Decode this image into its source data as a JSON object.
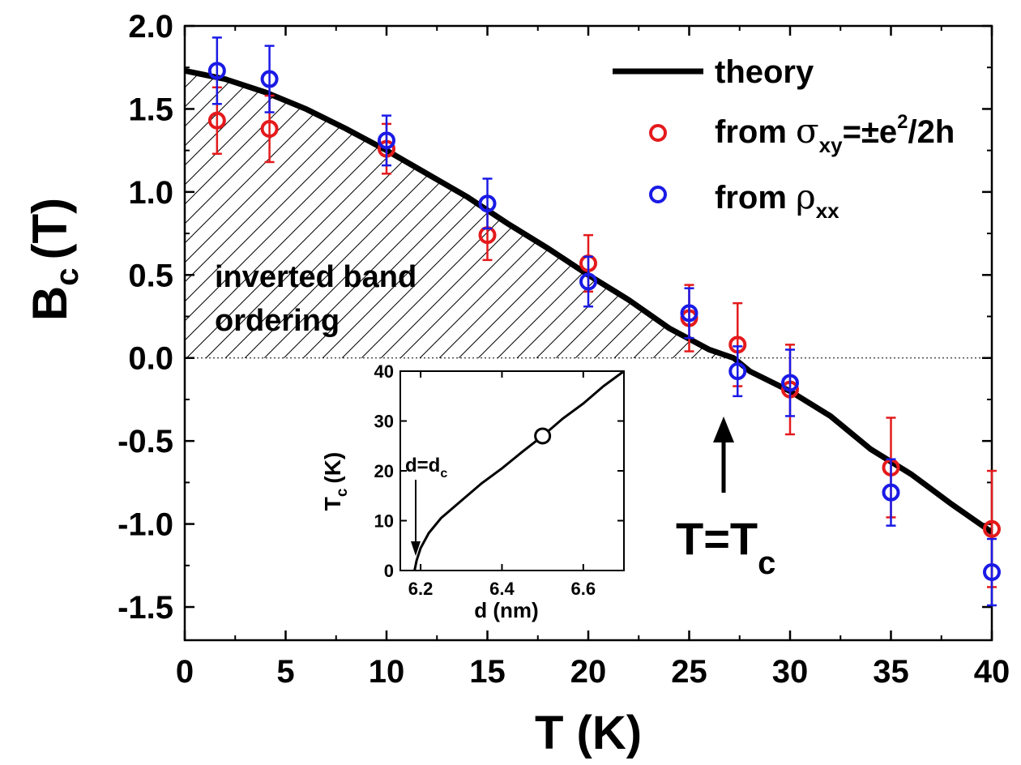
{
  "chart_data": [
    {
      "type": "scatter",
      "title": "",
      "xlabel": "T (K)",
      "ylabel": "B",
      "ylabel_sub": "c",
      "ylabel_unit": "(T)",
      "xlim": [
        0,
        40
      ],
      "ylim": [
        -1.7,
        2.0
      ],
      "xticks": [
        "0",
        "5",
        "10",
        "15",
        "20",
        "25",
        "30",
        "35",
        "40"
      ],
      "yticks": [
        "2.0",
        "1.5",
        "1.0",
        "0.5",
        "0.0",
        "-0.5",
        "-1.0",
        "-1.5"
      ],
      "legend": {
        "theory": "theory",
        "red_prefix": "from ",
        "red_sym": "σ",
        "red_sub": "xy",
        "red_mid": "=±e",
        "red_sup": "2",
        "red_suffix": "/2h",
        "blue_prefix": "from ",
        "blue_sym": "ρ",
        "blue_sub": "xx",
        "placement": "top-right"
      },
      "colors": {
        "red": "#e41a1c",
        "blue": "#1a1ae6",
        "theory": "#000000"
      },
      "theory": {
        "x": [
          0,
          2,
          4,
          6,
          8,
          10,
          12,
          14,
          16,
          18,
          20,
          22,
          24,
          26,
          27.2,
          28,
          30,
          32,
          34,
          36,
          38,
          40
        ],
        "y": [
          1.73,
          1.68,
          1.6,
          1.5,
          1.38,
          1.25,
          1.11,
          0.97,
          0.81,
          0.66,
          0.5,
          0.35,
          0.18,
          0.05,
          0.0,
          -0.08,
          -0.2,
          -0.35,
          -0.55,
          -0.7,
          -0.88,
          -1.05
        ]
      },
      "series": [
        {
          "name": "from σxy=±e²/2h",
          "x": [
            1.6,
            4.2,
            10,
            15,
            20,
            25,
            27.4,
            30,
            35,
            40
          ],
          "y": [
            1.43,
            1.38,
            1.26,
            0.74,
            0.57,
            0.24,
            0.08,
            -0.19,
            -0.66,
            -1.03
          ],
          "err": [
            0.2,
            0.2,
            0.15,
            0.15,
            0.17,
            0.2,
            0.25,
            0.27,
            0.3,
            0.35
          ]
        },
        {
          "name": "from ρxx",
          "x": [
            1.6,
            4.2,
            10,
            15,
            20,
            25,
            27.4,
            30,
            35,
            40
          ],
          "y": [
            1.73,
            1.68,
            1.31,
            0.93,
            0.46,
            0.27,
            -0.08,
            -0.15,
            -0.81,
            -1.29
          ],
          "err": [
            0.2,
            0.2,
            0.15,
            0.15,
            0.15,
            0.15,
            0.15,
            0.2,
            0.2,
            0.2
          ]
        }
      ],
      "annotations": {
        "region_line1": "inverted band",
        "region_line2": "ordering",
        "tc_main": "T=T",
        "tc_sub": "c"
      }
    },
    {
      "type": "line",
      "xlabel": "d (nm)",
      "ylabel": "T",
      "ylabel_sub": "c",
      "ylabel_unit": "(K)",
      "xlim": [
        6.15,
        6.7
      ],
      "ylim": [
        0,
        40
      ],
      "xticks": [
        "6.2",
        "6.4",
        "6.6"
      ],
      "yticks": [
        "40",
        "30",
        "20",
        "10",
        "0"
      ],
      "curve": {
        "x": [
          6.185,
          6.19,
          6.2,
          6.22,
          6.25,
          6.3,
          6.35,
          6.4,
          6.45,
          6.5,
          6.55,
          6.6,
          6.65,
          6.7
        ],
        "y": [
          0,
          2,
          4.5,
          7.5,
          10.5,
          14,
          17.5,
          20.5,
          23.8,
          27,
          30.5,
          33.5,
          37,
          40
        ]
      },
      "marker": {
        "x": 6.5,
        "y": 27
      },
      "annotation": {
        "main": "d=d",
        "sub": "c"
      }
    }
  ]
}
